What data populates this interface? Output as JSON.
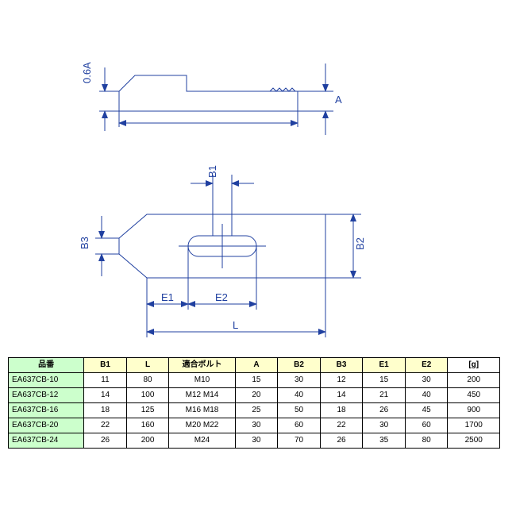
{
  "diagram": {
    "side_view_label_a": "A",
    "side_view_label_06a": "0.6A",
    "top_view_label_b1": "B1",
    "top_view_label_b2": "B2",
    "top_view_label_b3": "B3",
    "top_view_label_e1": "E1",
    "top_view_label_e2": "E2",
    "top_view_label_l": "L",
    "line_color": "#2040a0",
    "line_width": 1
  },
  "table": {
    "columns": [
      {
        "label": "品番",
        "class": "hdr-green"
      },
      {
        "label": "B1",
        "class": "hdr-yellow"
      },
      {
        "label": "L",
        "class": "hdr-yellow"
      },
      {
        "label": "適合ボルト",
        "class": "hdr-yellow"
      },
      {
        "label": "A",
        "class": "hdr-yellow"
      },
      {
        "label": "B2",
        "class": "hdr-yellow"
      },
      {
        "label": "B3",
        "class": "hdr-yellow"
      },
      {
        "label": "E1",
        "class": "hdr-yellow"
      },
      {
        "label": "E2",
        "class": "hdr-yellow"
      },
      {
        "label": "[g]",
        "class": ""
      }
    ],
    "rows": [
      [
        "EA637CB-10",
        "11",
        "80",
        "M10",
        "15",
        "30",
        "12",
        "15",
        "30",
        "200"
      ],
      [
        "EA637CB-12",
        "14",
        "100",
        "M12 M14",
        "20",
        "40",
        "14",
        "21",
        "40",
        "450"
      ],
      [
        "EA637CB-16",
        "18",
        "125",
        "M16 M18",
        "25",
        "50",
        "18",
        "26",
        "45",
        "900"
      ],
      [
        "EA637CB-20",
        "22",
        "160",
        "M20 M22",
        "30",
        "60",
        "22",
        "30",
        "60",
        "1700"
      ],
      [
        "EA637CB-24",
        "26",
        "200",
        "M24",
        "30",
        "70",
        "26",
        "35",
        "80",
        "2500"
      ]
    ],
    "col_widths": [
      "80",
      "45",
      "45",
      "70",
      "45",
      "45",
      "45",
      "45",
      "45",
      "55"
    ]
  }
}
